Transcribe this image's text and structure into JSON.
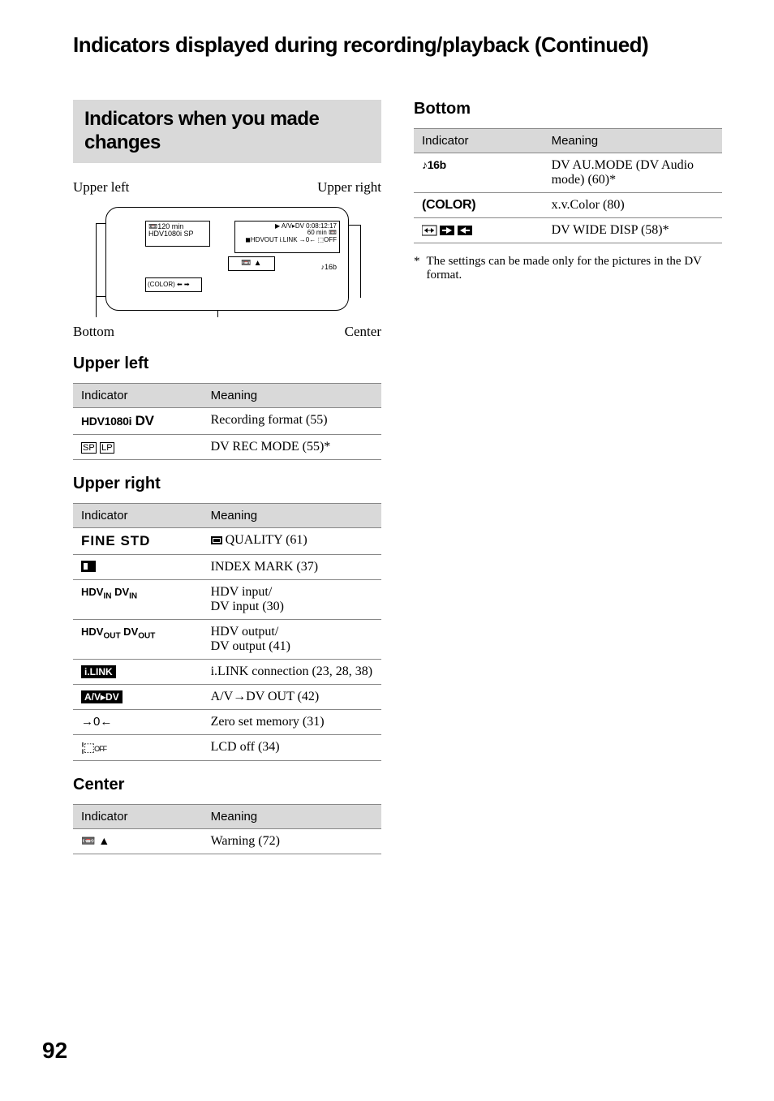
{
  "page_title": "Indicators displayed during recording/playback (Continued)",
  "gray_band_heading": "Indicators when you made changes",
  "diagram": {
    "upper_left_label": "Upper left",
    "upper_right_label": "Upper right",
    "bottom_label": "Bottom",
    "center_label": "Center",
    "ul_box_line1": "📼120 min",
    "ul_box_line2": "HDV1080i  SP",
    "ur_box_line1": "▶   A/V▸DV  0:08:12:17",
    "ur_box_line2": "60 min 📼",
    "ur_box_line3": "◼HDVOUT i.LINK →0← ⬚OFF",
    "center_box": "📼  ▲",
    "bl_box": "(COLOR) ⬅ ➡",
    "br_text": "♪16b"
  },
  "upper_left": {
    "heading": "Upper left",
    "header_indicator": "Indicator",
    "header_meaning": "Meaning",
    "rows": [
      {
        "icon_html": "<span class='ind-icon'>HDV1080i</span> <span class='ind-icon' style='font-size:17px'>DV</span>",
        "meaning": "Recording format (55)"
      },
      {
        "icon_html": "<span class='thin-border'>SP</span> <span class='thin-border'>LP</span>",
        "meaning": "DV REC MODE (55)*"
      }
    ]
  },
  "upper_right": {
    "heading": "Upper right",
    "header_indicator": "Indicator",
    "header_meaning": "Meaning",
    "rows": [
      {
        "icon_html": "<span class='ind-icon' style='font-size:17px; letter-spacing:1px'>FINE STD</span>",
        "meaning_html": "<span class='icon-square-fill'></span> QUALITY (61)"
      },
      {
        "icon_html": "<span class='icon-flag'></span>",
        "meaning_html": "INDEX MARK (37)"
      },
      {
        "icon_html": "<span class='small-ind'>HDV<span class='sub'>IN</span> DV<span class='sub'>IN</span></span>",
        "meaning_html": "HDV input/<br>DV input (30)"
      },
      {
        "icon_html": "<span class='small-ind'>HDV<span class='sub'>OUT</span> DV<span class='sub'>OUT</span></span>",
        "meaning_html": "HDV output/<br>DV output (41)"
      },
      {
        "icon_html": "<span class='black-box'>i.LINK</span>",
        "meaning_html": "i.LINK connection (23, 28, 38)"
      },
      {
        "icon_html": "<span class='black-box'>A/V▸DV</span>",
        "meaning_html": "A/V→DV OUT (42)"
      },
      {
        "icon_html": "<span class='zero-icon'>→0←</span>",
        "meaning_html": "Zero set memory (31)"
      },
      {
        "icon_html": "<span class='lcd-icon'>¦⬚<span style='font-size:9px'>OFF</span></span>",
        "meaning_html": "LCD off (34)"
      }
    ]
  },
  "center": {
    "heading": "Center",
    "header_indicator": "Indicator",
    "header_meaning": "Meaning",
    "rows": [
      {
        "icon_html": "<span class='eject-line'>📼 ▲</span>",
        "meaning_html": "Warning (72)"
      }
    ]
  },
  "bottom": {
    "heading": "Bottom",
    "header_indicator": "Indicator",
    "header_meaning": "Meaning",
    "rows": [
      {
        "icon_html": "<span class='ind-icon'>♪16b</span>",
        "meaning_html": "DV AU.MODE (DV Audio mode) (60)*"
      },
      {
        "icon_html": "<span class='ind-icon' style='font-size:16px'>(COLOR)</span>",
        "meaning_html": "x.v.Color (80)"
      },
      {
        "icon_html": "<span class='arrow-pair'><svg width='80' height='16'><rect x='0' y='2' width='18' height='12' fill='none' stroke='#000'/><line x1='3' y1='8' x2='15' y2='8' stroke='#000'/><polygon points='3,8 7,5 7,11' fill='#000'/><polygon points='15,8 11,5 11,11' fill='#000'/><rect x='22' y='2' width='18' height='12' fill='#000'/><polygon points='37,8 30,4 30,12' fill='#fff'/><line x1='25' y1='8' x2='31' y2='8' stroke='#fff' stroke-width='2'/><rect x='44' y='2' width='18' height='12' fill='#000'/><polygon points='47,8 54,4 54,12' fill='#fff'/><line x1='53' y1='8' x2='59' y2='8' stroke='#fff' stroke-width='2'/></svg></span>",
        "meaning_html": "DV WIDE DISP (58)*"
      }
    ]
  },
  "footnote_star": "*",
  "footnote_text": "The settings can be made only for the pictures in the DV format.",
  "page_number": "92"
}
